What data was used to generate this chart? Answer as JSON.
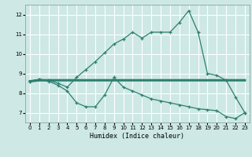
{
  "x_values": [
    0,
    1,
    2,
    3,
    4,
    5,
    6,
    7,
    8,
    9,
    10,
    11,
    12,
    13,
    14,
    15,
    16,
    17,
    18,
    19,
    20,
    21,
    22,
    23
  ],
  "line_upper": [
    8.6,
    8.7,
    8.65,
    8.5,
    8.3,
    8.8,
    9.2,
    9.6,
    10.05,
    10.5,
    10.75,
    11.1,
    10.8,
    11.1,
    11.1,
    11.1,
    11.6,
    12.2,
    11.1,
    9.0,
    8.9,
    8.65,
    7.8,
    7.0
  ],
  "line_flat": [
    8.6,
    8.65,
    8.65,
    8.65,
    8.65,
    8.65,
    8.65,
    8.65,
    8.65,
    8.65,
    8.65,
    8.65,
    8.65,
    8.65,
    8.65,
    8.65,
    8.65,
    8.65,
    8.65,
    8.65,
    8.65,
    8.65,
    8.65,
    8.65
  ],
  "line_lower": [
    8.6,
    8.7,
    8.6,
    8.4,
    8.1,
    7.5,
    7.3,
    7.3,
    7.9,
    8.8,
    8.3,
    8.1,
    7.9,
    7.7,
    7.6,
    7.5,
    7.4,
    7.3,
    7.2,
    7.15,
    7.1,
    6.8,
    6.7,
    7.0
  ],
  "color": "#2d7f6f",
  "bg_color": "#cde8e5",
  "grid_color": "#ffffff",
  "xlabel": "Humidex (Indice chaleur)",
  "ylim": [
    6.5,
    12.5
  ],
  "xlim": [
    -0.5,
    23.5
  ],
  "yticks": [
    7,
    8,
    9,
    10,
    11,
    12
  ],
  "xticks": [
    0,
    1,
    2,
    3,
    4,
    5,
    6,
    7,
    8,
    9,
    10,
    11,
    12,
    13,
    14,
    15,
    16,
    17,
    18,
    19,
    20,
    21,
    22,
    23
  ]
}
